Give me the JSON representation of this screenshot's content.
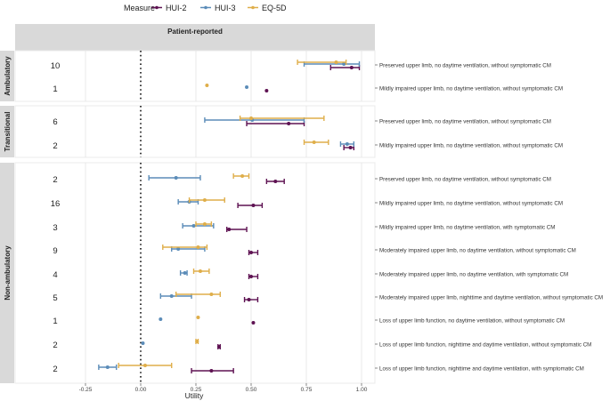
{
  "chart_data": {
    "type": "forest",
    "title": "",
    "xlabel": "Utility",
    "ylabel": "",
    "xlim": [
      -0.57,
      1.056
    ],
    "x_ticks": [
      -0.25,
      0,
      0.25,
      0.5,
      0.75,
      1.0
    ],
    "x_tick_labels": [
      "-0.25",
      "0.00",
      "0.25",
      "0.50",
      "0.75",
      "1.00"
    ],
    "reference_line": 0,
    "column_strip": "Patient-reported",
    "legend": {
      "title": "Measure",
      "placement": "top",
      "entries": [
        "HUI-2",
        "HUI-3",
        "EQ-5D"
      ]
    },
    "series_colors": {
      "HUI-2": "#5e1252",
      "HUI-3": "#5b8cb8",
      "EQ-5D": "#dfae4a"
    },
    "panels": [
      {
        "name": "Ambulatory",
        "rows": [
          {
            "label": "Preserved upper limb, no daytime ventilation, without symptomatic CM",
            "n": "10",
            "values": {
              "HUI-2": [
                0.955,
                0.86,
                0.99
              ],
              "HUI-3": [
                0.92,
                0.74,
                0.99
              ],
              "EQ-5D": [
                0.885,
                0.71,
                0.93
              ]
            }
          },
          {
            "label": "Mildly impaired upper limb, no daytime ventilation, without symptomatic CM",
            "n": "1",
            "values": {
              "HUI-2": [
                0.57,
                0.57,
                0.57
              ],
              "HUI-3": [
                0.48,
                0.48,
                0.48
              ],
              "EQ-5D": [
                0.3,
                0.3,
                0.3
              ]
            }
          }
        ]
      },
      {
        "name": "Transitional",
        "rows": [
          {
            "label": "Preserved upper limb, no daytime ventilation, without symptomatic CM",
            "n": "6",
            "values": {
              "HUI-2": [
                0.67,
                0.48,
                0.74
              ],
              "HUI-3": [
                0.505,
                0.29,
                0.74
              ],
              "EQ-5D": [
                0.5,
                0.45,
                0.83
              ]
            }
          },
          {
            "label": "Mildly impaired upper limb, no daytime ventilation, without symptomatic CM",
            "n": "2",
            "values": {
              "HUI-2": [
                0.95,
                0.92,
                0.965
              ],
              "HUI-3": [
                0.935,
                0.905,
                0.965
              ],
              "EQ-5D": [
                0.785,
                0.74,
                0.85
              ]
            }
          }
        ]
      },
      {
        "name": "Non-ambulatory",
        "rows": [
          {
            "label": "Preserved upper limb, no daytime ventilation, without symptomatic CM",
            "n": "2",
            "values": {
              "HUI-2": [
                0.61,
                0.57,
                0.65
              ],
              "HUI-3": [
                0.16,
                0.037,
                0.27
              ],
              "EQ-5D": [
                0.46,
                0.42,
                0.49
              ]
            }
          },
          {
            "label": "Mildly impaired upper limb, no daytime ventilation, without symptomatic CM",
            "n": "16",
            "values": {
              "HUI-2": [
                0.51,
                0.44,
                0.55
              ],
              "HUI-3": [
                0.22,
                0.17,
                0.26
              ],
              "EQ-5D": [
                0.29,
                0.22,
                0.38
              ]
            }
          },
          {
            "label": "Mildly impaired upper limb, no daytime ventilation, with symptomatic CM",
            "n": "3",
            "values": {
              "HUI-2": [
                0.4,
                0.39,
                0.48
              ],
              "HUI-3": [
                0.24,
                0.19,
                0.33
              ],
              "EQ-5D": [
                0.29,
                0.25,
                0.32
              ]
            }
          },
          {
            "label": "Moderately impaired upper limb, no daytime ventilation, without symptomatic CM",
            "n": "9",
            "values": {
              "HUI-2": [
                0.5,
                0.49,
                0.53
              ],
              "HUI-3": [
                0.17,
                0.14,
                0.29
              ],
              "EQ-5D": [
                0.26,
                0.1,
                0.3
              ]
            }
          },
          {
            "label": "Moderately impaired upper limb, no daytime ventilation, with symptomatic CM",
            "n": "4",
            "values": {
              "HUI-2": [
                0.5,
                0.49,
                0.53
              ],
              "HUI-3": [
                0.2,
                0.18,
                0.21
              ],
              "EQ-5D": [
                0.27,
                0.24,
                0.31
              ]
            }
          },
          {
            "label": "Moderately impaired upper limb, nighttime and daytime ventilation, without symptomatic CM",
            "n": "5",
            "values": {
              "HUI-2": [
                0.49,
                0.47,
                0.53
              ],
              "HUI-3": [
                0.14,
                0.09,
                0.23
              ],
              "EQ-5D": [
                0.32,
                0.16,
                0.36
              ]
            }
          },
          {
            "label": "Loss of upper limb function, no daytime ventilation, without symptomatic CM",
            "n": "1",
            "values": {
              "HUI-2": [
                0.51,
                0.51,
                0.51
              ],
              "HUI-3": [
                0.09,
                0.09,
                0.09
              ],
              "EQ-5D": [
                0.26,
                0.26,
                0.26
              ]
            }
          },
          {
            "label": "Loss of upper limb function, nighttime and daytime ventilation, without symptomatic CM",
            "n": "2",
            "values": {
              "HUI-2": [
                0.355,
                0.35,
                0.36
              ],
              "HUI-3": [
                0.01,
                0.01,
                0.01
              ],
              "EQ-5D": [
                0.255,
                0.25,
                0.26
              ]
            }
          },
          {
            "label": "Loss of upper limb function, nighttime and daytime ventilation, with symptomatic CM",
            "n": "2",
            "values": {
              "HUI-2": [
                0.32,
                0.23,
                0.42
              ],
              "HUI-3": [
                -0.15,
                -0.19,
                -0.11
              ],
              "EQ-5D": [
                0.02,
                -0.1,
                0.14
              ]
            }
          }
        ]
      }
    ]
  }
}
